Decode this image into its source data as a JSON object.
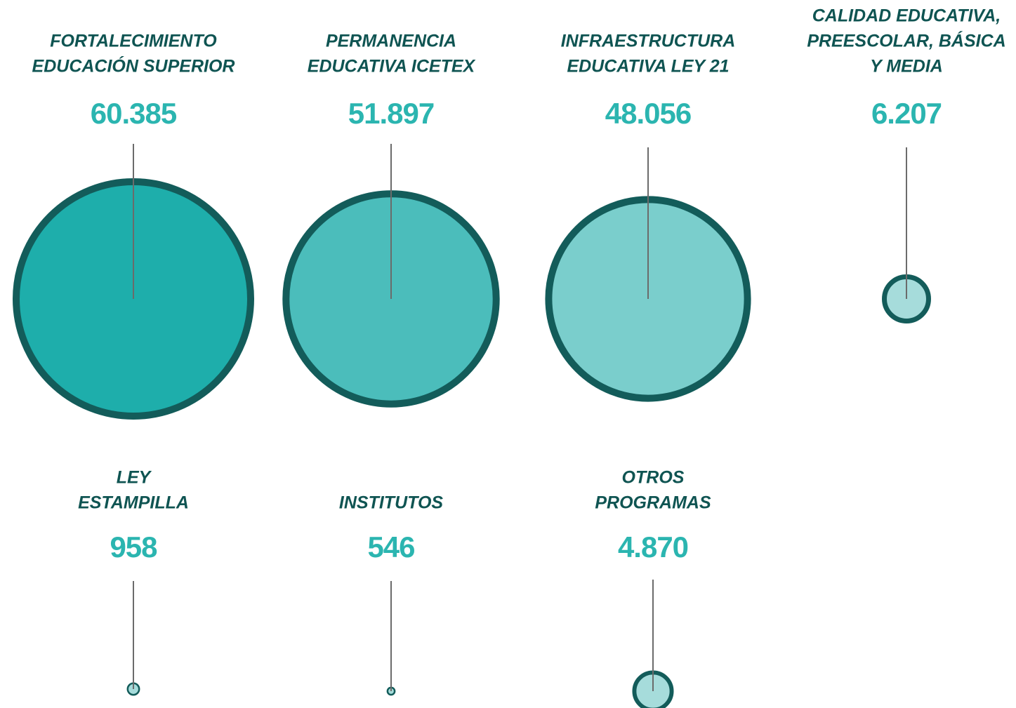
{
  "chart_data": {
    "type": "bubble",
    "categories": [
      [
        "FORTALECIMIENTO",
        "EDUCACIÓN SUPERIOR"
      ],
      [
        "PERMANENCIA",
        "EDUCATIVA ICETEX"
      ],
      [
        "INFRAESTRUCTURA",
        "EDUCATIVA LEY 21"
      ],
      [
        "CALIDAD EDUCATIVA,",
        "PREESCOLAR, BÁSICA",
        "Y MEDIA"
      ],
      [
        "LEY",
        "ESTAMPILLA"
      ],
      [
        "INSTITUTOS"
      ],
      [
        "OTROS",
        "PROGRAMAS"
      ]
    ],
    "values": [
      60385,
      51897,
      48056,
      6207,
      958,
      546,
      4870
    ],
    "value_labels": [
      "60.385",
      "51.897",
      "48.056",
      "6.207",
      "958",
      "546",
      "4.870"
    ],
    "colors": [
      "#1eaeab",
      "#4bbdbb",
      "#7acecc",
      "#a6dcdb",
      "#a6dcdb",
      "#a6dcdb",
      "#a6dcdb"
    ],
    "stroke_color": "#135c5a"
  }
}
